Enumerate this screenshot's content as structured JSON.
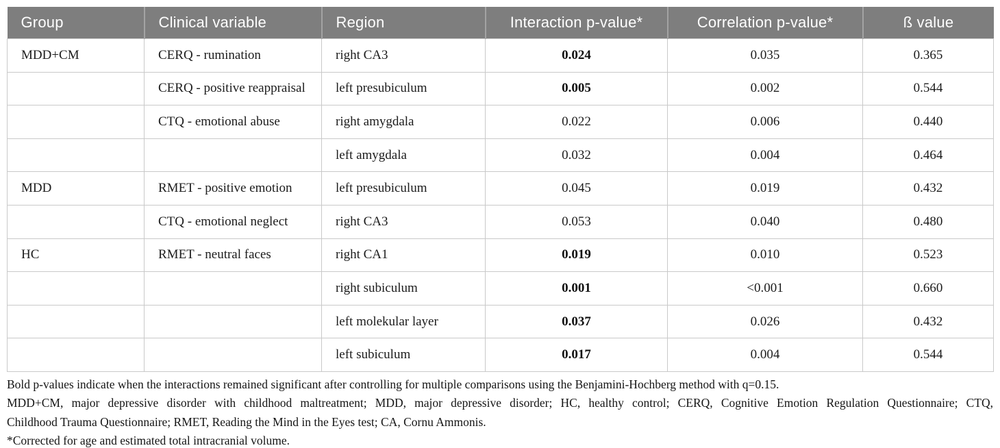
{
  "table": {
    "columns": [
      "Group",
      "Clinical variable",
      "Region",
      "Interaction p-value*",
      "Correlation p-value*",
      "ß value"
    ],
    "rows": [
      {
        "group": "MDD+CM",
        "clinical_variable": "CERQ - rumination",
        "region": "right CA3",
        "interaction_p": "0.024",
        "interaction_p_bold": true,
        "correlation_p": "0.035",
        "beta_value": "0.365"
      },
      {
        "group": "",
        "clinical_variable": "CERQ - positive reappraisal",
        "region": "left presubiculum",
        "interaction_p": "0.005",
        "interaction_p_bold": true,
        "correlation_p": "0.002",
        "beta_value": "0.544"
      },
      {
        "group": "",
        "clinical_variable": "CTQ - emotional abuse",
        "region": "right amygdala",
        "interaction_p": "0.022",
        "interaction_p_bold": false,
        "correlation_p": "0.006",
        "beta_value": "0.440"
      },
      {
        "group": "",
        "clinical_variable": "",
        "region": "left amygdala",
        "interaction_p": "0.032",
        "interaction_p_bold": false,
        "correlation_p": "0.004",
        "beta_value": "0.464"
      },
      {
        "group": "MDD",
        "clinical_variable": "RMET - positive emotion",
        "region": "left presubiculum",
        "interaction_p": "0.045",
        "interaction_p_bold": false,
        "correlation_p": "0.019",
        "beta_value": "0.432"
      },
      {
        "group": "",
        "clinical_variable": "CTQ - emotional neglect",
        "region": "right CA3",
        "interaction_p": "0.053",
        "interaction_p_bold": false,
        "correlation_p": "0.040",
        "beta_value": "0.480"
      },
      {
        "group": "HC",
        "clinical_variable": "RMET - neutral faces",
        "region": "right CA1",
        "interaction_p": "0.019",
        "interaction_p_bold": true,
        "correlation_p": "0.010",
        "beta_value": "0.523"
      },
      {
        "group": "",
        "clinical_variable": "",
        "region": "right subiculum",
        "interaction_p": "0.001",
        "interaction_p_bold": true,
        "correlation_p": "<0.001",
        "beta_value": "0.660"
      },
      {
        "group": "",
        "clinical_variable": "",
        "region": "left molekular layer",
        "interaction_p": "0.037",
        "interaction_p_bold": true,
        "correlation_p": "0.026",
        "beta_value": "0.432"
      },
      {
        "group": "",
        "clinical_variable": "",
        "region": "left subiculum",
        "interaction_p": "0.017",
        "interaction_p_bold": true,
        "correlation_p": "0.004",
        "beta_value": "0.544"
      }
    ]
  },
  "footnotes": {
    "significance": "Bold p-values indicate when the interactions remained significant after controlling for multiple comparisons using the Benjamini-Hochberg method with q=0.15.",
    "abbreviations_line1": "MDD+CM, major depressive disorder with childhood maltreatment; MDD, major depressive disorder; HC, healthy control; CERQ, Cognitive Emotion Regulation Questionnaire; CTQ,",
    "abbreviations_line2": "Childhood Trauma Questionnaire; RMET, Reading the Mind in the Eyes test; CA, Cornu Ammonis.",
    "corrected": "*Corrected for age and estimated total intracranial volume."
  },
  "colors": {
    "header_background": "#7e7e7e",
    "header_text": "#ffffff",
    "cell_border": "#c9c9c9",
    "body_text": "#1c1c1c"
  }
}
